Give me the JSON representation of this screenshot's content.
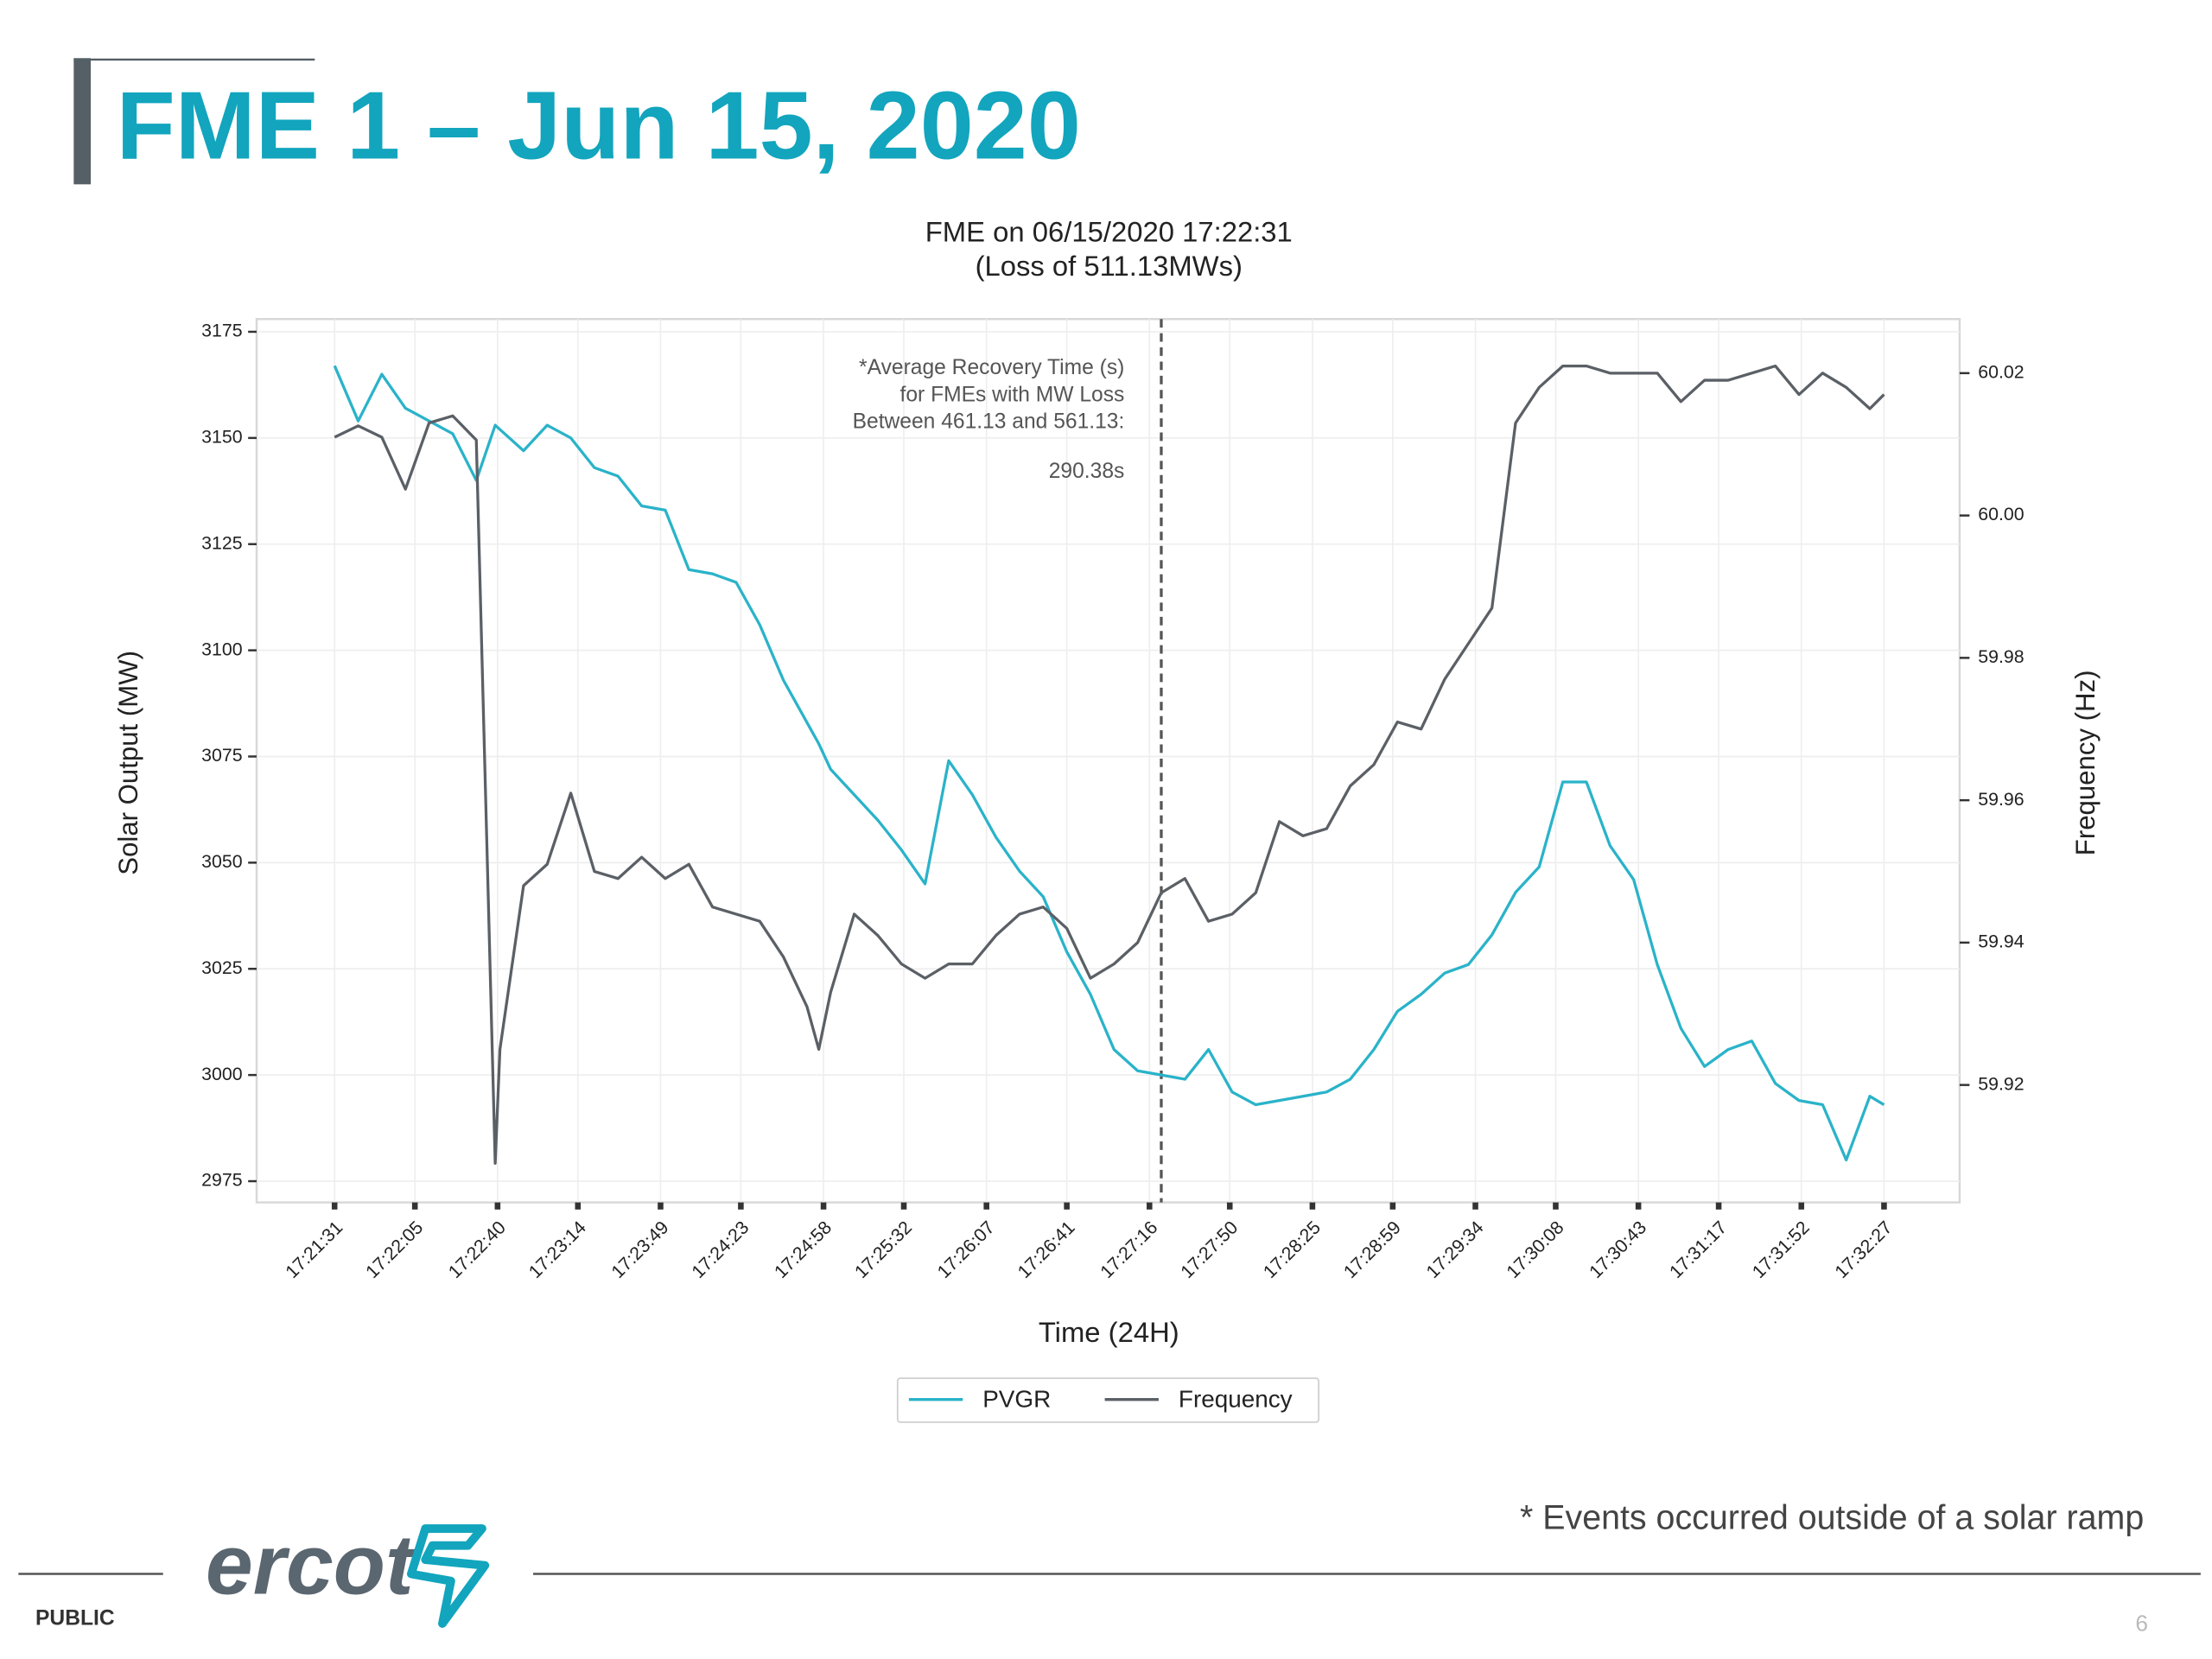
{
  "slide": {
    "title": "FME 1 – Jun 15, 2020",
    "footnote": "* Events occurred outside of a solar ramp",
    "classification": "PUBLIC",
    "page": "6",
    "logo": "ercot"
  },
  "chart_data": {
    "type": "line",
    "title": "FME on 06/15/2020 17:22:31",
    "subtitle": "(Loss of 511.13MWs)",
    "x_label": "Time (24H)",
    "y_label": "Solar Output (MW)",
    "y2_label": "Frequency (Hz)",
    "annotation": [
      "*Average Recovery Time (s)",
      "for FMEs with MW Loss",
      "Between 461.13 and 561.13:",
      "290.38s"
    ],
    "x": [
      "17:21:31",
      "17:21:41",
      "17:21:51",
      "17:22:01",
      "17:22:11",
      "17:22:21",
      "17:22:31",
      "17:22:39",
      "17:22:41",
      "17:22:51",
      "17:23:01",
      "17:23:11",
      "17:23:21",
      "17:23:31",
      "17:23:41",
      "17:23:51",
      "17:24:01",
      "17:24:11",
      "17:24:21",
      "17:24:31",
      "17:24:41",
      "17:24:51",
      "17:24:56",
      "17:25:01",
      "17:25:11",
      "17:25:21",
      "17:25:31",
      "17:25:41",
      "17:25:51",
      "17:26:01",
      "17:26:11",
      "17:26:21",
      "17:26:31",
      "17:26:41",
      "17:26:51",
      "17:27:01",
      "17:27:11",
      "17:27:21",
      "17:27:31",
      "17:27:41",
      "17:27:51",
      "17:28:01",
      "17:28:11",
      "17:28:21",
      "17:28:31",
      "17:28:41",
      "17:28:51",
      "17:29:01",
      "17:29:11",
      "17:29:21",
      "17:29:31",
      "17:29:41",
      "17:29:51",
      "17:30:01",
      "17:30:11",
      "17:30:21",
      "17:30:31",
      "17:30:41",
      "17:30:51",
      "17:31:01",
      "17:31:11",
      "17:31:21",
      "17:31:31",
      "17:31:41",
      "17:31:51",
      "17:32:01",
      "17:32:11",
      "17:32:21",
      "17:32:27"
    ],
    "xlim": [
      "17:20:58",
      "17:32:59"
    ],
    "xticks": [
      "17:21:31",
      "17:22:05",
      "17:22:40",
      "17:23:14",
      "17:23:49",
      "17:24:23",
      "17:24:58",
      "17:25:32",
      "17:26:07",
      "17:26:41",
      "17:27:16",
      "17:27:50",
      "17:28:25",
      "17:28:59",
      "17:29:34",
      "17:30:08",
      "17:30:43",
      "17:31:17",
      "17:31:52",
      "17:32:27"
    ],
    "ylim": [
      2970,
      3178
    ],
    "yticks": [
      2975,
      3000,
      3025,
      3050,
      3075,
      3100,
      3125,
      3150,
      3175
    ],
    "y2lim": [
      59.9035,
      60.0276
    ],
    "y2ticks": [
      59.92,
      59.94,
      59.96,
      59.98,
      {
        "value": 60,
        "label": "60.00"
      },
      60.02
    ],
    "grid": true,
    "legend": "bottom",
    "vline_x": "17:27:21",
    "series": [
      {
        "name": "PVGR",
        "color": "#2ab3c9",
        "values": [
          3167,
          3154,
          3165,
          3157,
          3154,
          3151,
          3140,
          3153,
          3152,
          3147,
          3153,
          3150,
          3143,
          3141,
          3134,
          3133,
          3119,
          3118,
          3116,
          3106,
          3093,
          3083,
          3078,
          3072,
          3066,
          3060,
          3053,
          3045,
          3074,
          3066,
          3056,
          3048,
          3042,
          3029,
          3019,
          3006,
          3001,
          3000,
          2999,
          3006,
          2996,
          2993,
          2994,
          2995,
          2996,
          2999,
          3006,
          3015,
          3019,
          3024,
          3026,
          3033,
          3043,
          3049,
          3069,
          3069,
          3054,
          3046,
          3026,
          3011,
          3002,
          3006,
          3008,
          2998,
          2994,
          2993,
          2980,
          2995,
          2993
        ]
      },
      {
        "name": "Frequency",
        "color": "#5b6066",
        "axis": "y2",
        "values": [
          60.011,
          60.0126,
          60.011,
          60.0037,
          60.013,
          60.014,
          60.0106,
          59.909,
          59.925,
          59.948,
          59.951,
          59.961,
          59.95,
          59.949,
          59.952,
          59.949,
          59.951,
          59.945,
          59.944,
          59.943,
          59.938,
          59.931,
          59.925,
          59.933,
          59.944,
          59.941,
          59.937,
          59.935,
          59.937,
          59.937,
          59.941,
          59.944,
          59.945,
          59.942,
          59.935,
          59.937,
          59.94,
          59.947,
          59.949,
          59.943,
          59.944,
          59.947,
          59.957,
          59.955,
          59.956,
          59.962,
          59.965,
          59.971,
          59.97,
          59.977,
          59.982,
          59.987,
          60.013,
          60.018,
          60.021,
          60.021,
          60.02,
          60.02,
          60.02,
          60.016,
          60.019,
          60.019,
          60.02,
          60.021,
          60.017,
          60.02,
          60.018,
          60.015,
          60.017
        ]
      }
    ]
  }
}
